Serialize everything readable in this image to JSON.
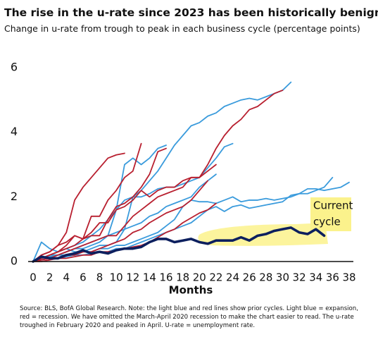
{
  "chart_data": {
    "type": "line",
    "title": "The rise in the u-rate since 2023 has been historically benign",
    "subtitle": "Change in u-rate from trough to peak in each business cycle (percentage points)",
    "x_label": "Months",
    "annotations": [
      "Current",
      "cycle"
    ],
    "footnote": "Source: BLS, BofA Global Research. Note: the light blue and red lines show prior cycles. Light blue = expansion, red = recession. We have omitted the March-April 2020 recession to make the chart easier to read. The u-rate troughed in February 2020 and peaked in April. U-rate = unemployment rate.",
    "x": [
      0,
      1,
      2,
      3,
      4,
      5,
      6,
      7,
      8,
      9,
      10,
      11,
      12,
      13,
      14,
      15,
      16,
      17,
      18,
      19,
      20,
      21,
      22,
      23,
      24,
      25,
      26,
      27,
      28,
      29,
      30,
      31,
      32,
      33,
      34,
      35,
      36,
      37,
      38
    ],
    "xlim": [
      0,
      38
    ],
    "xticks": [
      0,
      2,
      4,
      6,
      8,
      10,
      12,
      14,
      16,
      18,
      20,
      22,
      24,
      26,
      28,
      30,
      32,
      34,
      36,
      38
    ],
    "ylim": [
      0,
      6
    ],
    "yticks": [
      0,
      2,
      4,
      6
    ],
    "series": [
      {
        "color": "#3a9bdc",
        "values": [
          0,
          0.1,
          0.2,
          0.3,
          0.4,
          0.5,
          0.6,
          0.8,
          1.0,
          1.3,
          1.6,
          1.9,
          2.0,
          2.2,
          2.5,
          2.8,
          3.2,
          3.6,
          3.9,
          4.2,
          4.3,
          4.5,
          4.6,
          4.8,
          4.9,
          5.0,
          5.05,
          5.0,
          5.1,
          5.2,
          5.3,
          5.55,
          null,
          null,
          null,
          null,
          null,
          null,
          null
        ]
      },
      {
        "color": "#3a9bdc",
        "values": [
          0,
          0.6,
          0.4,
          0.3,
          0.4,
          0.3,
          0.3,
          0.4,
          0.5,
          0.5,
          0.6,
          1.0,
          2.0,
          2.0,
          2.1,
          2.25,
          2.3,
          2.3,
          2.4,
          2.5,
          2.6,
          2.9,
          3.2,
          3.55,
          3.65,
          null,
          null,
          null,
          null,
          null,
          null,
          null,
          null,
          null,
          null,
          null,
          null,
          null,
          null
        ]
      },
      {
        "color": "#3a9bdc",
        "values": [
          0,
          0.1,
          0.2,
          0.2,
          0.3,
          0.4,
          0.4,
          0.5,
          0.6,
          0.8,
          1.6,
          3.0,
          3.2,
          3.0,
          3.2,
          3.5,
          3.6,
          null,
          null,
          null,
          null,
          null,
          null,
          null,
          null,
          null,
          null,
          null,
          null,
          null,
          null,
          null,
          null,
          null,
          null,
          null,
          null,
          null,
          null
        ]
      },
      {
        "color": "#3a9bdc",
        "values": [
          0,
          0.1,
          0.1,
          0.2,
          0.2,
          0.2,
          0.3,
          0.3,
          0.4,
          0.4,
          0.5,
          0.5,
          0.6,
          0.7,
          0.8,
          0.9,
          1.1,
          1.3,
          1.7,
          1.9,
          1.85,
          1.85,
          1.8,
          1.9,
          2.0,
          1.85,
          1.9,
          1.9,
          1.95,
          1.9,
          1.95,
          2.0,
          2.1,
          2.1,
          2.2,
          2.3,
          2.6,
          null,
          null
        ]
      },
      {
        "color": "#3a9bdc",
        "values": [
          0,
          0.05,
          0.1,
          0.1,
          0.15,
          0.2,
          0.2,
          0.25,
          0.3,
          0.3,
          0.4,
          0.4,
          0.5,
          0.6,
          0.7,
          0.8,
          0.9,
          1.0,
          1.1,
          1.2,
          1.4,
          1.6,
          1.7,
          1.55,
          1.7,
          1.75,
          1.65,
          1.7,
          1.75,
          1.8,
          1.85,
          2.05,
          2.1,
          2.25,
          2.25,
          2.2,
          2.25,
          2.3,
          2.45
        ]
      },
      {
        "color": "#3a9bdc",
        "values": [
          0,
          0.1,
          0.15,
          0.2,
          0.3,
          0.4,
          0.5,
          0.6,
          0.7,
          0.8,
          0.9,
          1.0,
          1.1,
          1.2,
          1.4,
          1.5,
          1.7,
          1.8,
          1.9,
          2.0,
          2.3,
          2.5,
          2.7,
          null,
          null,
          null,
          null,
          null,
          null,
          null,
          null,
          null,
          null,
          null,
          null,
          null,
          null,
          null,
          null
        ]
      },
      {
        "color": "#b81f2f",
        "values": [
          0,
          0.2,
          0.3,
          0.5,
          0.6,
          0.8,
          0.7,
          0.9,
          1.2,
          1.2,
          1.6,
          1.7,
          1.9,
          2.2,
          2.0,
          2.2,
          2.3,
          2.3,
          2.5,
          2.6,
          2.6,
          3.0,
          3.5,
          3.9,
          4.2,
          4.4,
          4.7,
          4.8,
          5.0,
          5.2,
          5.3,
          null,
          null,
          null,
          null,
          null,
          null,
          null,
          null
        ]
      },
      {
        "color": "#b81f2f",
        "values": [
          0,
          0.2,
          0.3,
          0.5,
          0.9,
          1.9,
          2.3,
          2.6,
          2.9,
          3.2,
          3.3,
          3.35,
          null,
          null,
          null,
          null,
          null,
          null,
          null,
          null,
          null,
          null,
          null,
          null,
          null,
          null,
          null,
          null,
          null,
          null,
          null,
          null,
          null,
          null,
          null,
          null,
          null,
          null,
          null
        ]
      },
      {
        "color": "#b81f2f",
        "values": [
          0,
          0.1,
          0.2,
          0.3,
          0.5,
          0.8,
          0.7,
          1.4,
          1.4,
          1.9,
          2.2,
          2.6,
          2.8,
          3.65,
          null,
          null,
          null,
          null,
          null,
          null,
          null,
          null,
          null,
          null,
          null,
          null,
          null,
          null,
          null,
          null,
          null,
          null,
          null,
          null,
          null,
          null,
          null,
          null,
          null
        ]
      },
      {
        "color": "#b81f2f",
        "values": [
          0,
          0.1,
          0.2,
          0.3,
          0.4,
          0.5,
          0.7,
          0.8,
          0.8,
          1.3,
          1.7,
          1.8,
          2.0,
          2.3,
          2.7,
          3.4,
          3.5,
          null,
          null,
          null,
          null,
          null,
          null,
          null,
          null,
          null,
          null,
          null,
          null,
          null,
          null,
          null,
          null,
          null,
          null,
          null,
          null,
          null,
          null
        ]
      },
      {
        "color": "#b81f2f",
        "values": [
          0,
          0.05,
          0.1,
          0.2,
          0.3,
          0.4,
          0.5,
          0.6,
          0.7,
          0.8,
          0.8,
          1.1,
          1.4,
          1.6,
          1.8,
          2.0,
          2.1,
          2.2,
          2.3,
          2.6,
          2.6,
          2.8,
          3.0,
          null,
          null,
          null,
          null,
          null,
          null,
          null,
          null,
          null,
          null,
          null,
          null,
          null,
          null,
          null,
          null
        ]
      },
      {
        "color": "#b81f2f",
        "values": [
          0,
          0.05,
          0.1,
          0.1,
          0.2,
          0.2,
          0.3,
          0.3,
          0.4,
          0.5,
          0.6,
          0.7,
          0.9,
          1.0,
          1.2,
          1.35,
          1.5,
          1.6,
          1.7,
          1.9,
          2.2,
          2.5,
          null,
          null,
          null,
          null,
          null,
          null,
          null,
          null,
          null,
          null,
          null,
          null,
          null,
          null,
          null,
          null,
          null
        ]
      },
      {
        "color": "#b81f2f",
        "values": [
          0,
          0,
          0.05,
          0.1,
          0.1,
          0.15,
          0.2,
          0.2,
          0.3,
          0.3,
          0.35,
          0.4,
          0.45,
          0.5,
          0.6,
          0.75,
          0.9,
          1.0,
          1.2,
          1.35,
          1.5,
          1.6,
          1.8,
          null,
          null,
          null,
          null,
          null,
          null,
          null,
          null,
          null,
          null,
          null,
          null,
          null,
          null,
          null,
          null
        ]
      },
      {
        "color": "#0c1f5e",
        "values": [
          0,
          0.15,
          0.1,
          0.1,
          0.2,
          0.25,
          0.35,
          0.25,
          0.3,
          0.25,
          0.35,
          0.4,
          0.4,
          0.45,
          0.6,
          0.7,
          0.7,
          0.6,
          0.65,
          0.7,
          0.6,
          0.55,
          0.65,
          0.65,
          0.65,
          0.75,
          0.65,
          0.8,
          0.85,
          0.95,
          1.0,
          1.05,
          0.9,
          0.85,
          1.0,
          0.8,
          null,
          null,
          null
        ]
      }
    ]
  }
}
